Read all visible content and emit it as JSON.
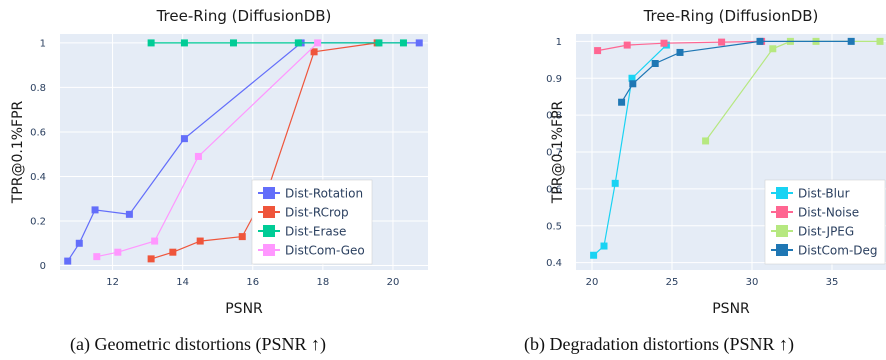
{
  "captions": {
    "a": "(a) Geometric distortions (PSNR ↑)",
    "b": "(b) Degradation distortions (PSNR ↑)"
  },
  "chart_data": [
    {
      "type": "line",
      "title": "Tree-Ring (DiffusionDB)",
      "xlabel": "PSNR",
      "ylabel": "TPR@0.1%FPR",
      "xlim": [
        10.5,
        21.0
      ],
      "ylim": [
        -0.02,
        1.04
      ],
      "xticks": [
        12,
        14,
        16,
        18,
        20
      ],
      "xtick_labels": [
        "12",
        "14",
        "16",
        "18",
        "20"
      ],
      "yticks": [
        0,
        0.2,
        0.4,
        0.6,
        0.8,
        1
      ],
      "ytick_labels": [
        "0",
        "0.2",
        "0.4",
        "0.6",
        "0.8",
        "1"
      ],
      "grid": true,
      "legend_position": "bottom-right",
      "series": [
        {
          "name": "Dist-Rotation",
          "color": "#636efa",
          "x": [
            10.72,
            11.05,
            11.5,
            12.48,
            14.05,
            17.38,
            20.75
          ],
          "y": [
            0.02,
            0.1,
            0.25,
            0.23,
            0.57,
            1.0,
            1.0
          ]
        },
        {
          "name": "Dist-RCrop",
          "color": "#ef553b",
          "x": [
            13.1,
            13.72,
            14.5,
            15.7,
            16.45,
            17.75,
            19.55
          ],
          "y": [
            0.03,
            0.06,
            0.11,
            0.13,
            0.35,
            0.96,
            1.0
          ]
        },
        {
          "name": "Dist-Erase",
          "color": "#00cc96",
          "x": [
            13.1,
            14.05,
            15.45,
            17.3,
            19.6,
            20.3
          ],
          "y": [
            1.0,
            1.0,
            1.0,
            1.0,
            1.0,
            1.0
          ]
        },
        {
          "name": "DistCom-Geo",
          "color": "#ff97ff",
          "x": [
            11.55,
            12.15,
            13.2,
            14.45,
            17.85
          ],
          "y": [
            0.04,
            0.06,
            0.11,
            0.49,
            1.0
          ]
        }
      ]
    },
    {
      "type": "line",
      "title": "Tree-Ring (DiffusionDB)",
      "xlabel": "PSNR",
      "ylabel": "TPR@0.1%FPR",
      "xlim": [
        19.0,
        39.0
      ],
      "ylim": [
        0.38,
        1.02
      ],
      "xticks": [
        20,
        25,
        30,
        35
      ],
      "xtick_labels": [
        "20",
        "25",
        "30",
        "35"
      ],
      "yticks": [
        0.4,
        0.5,
        0.6,
        0.7,
        0.8,
        0.9,
        1
      ],
      "ytick_labels": [
        "0.4",
        "0.5",
        "0.6",
        "0.7",
        "0.8",
        "0.9",
        "1"
      ],
      "grid": true,
      "legend_position": "middle-right",
      "series": [
        {
          "name": "Dist-Blur",
          "color": "#19d3f3",
          "x": [
            20.1,
            20.75,
            21.45,
            22.5,
            24.65
          ],
          "y": [
            0.42,
            0.445,
            0.615,
            0.9,
            0.99
          ]
        },
        {
          "name": "Dist-Noise",
          "color": "#ff6692",
          "x": [
            20.35,
            22.2,
            24.5,
            28.1,
            30.6
          ],
          "y": [
            0.975,
            0.99,
            0.995,
            0.998,
            1.0
          ]
        },
        {
          "name": "Dist-JPEG",
          "color": "#b6e880",
          "x": [
            27.1,
            31.3,
            32.4,
            34.0,
            38.0
          ],
          "y": [
            0.73,
            0.98,
            1.0,
            1.0,
            1.0
          ]
        },
        {
          "name": "DistCom-Deg",
          "color": "#1f77b4",
          "x": [
            21.85,
            22.55,
            23.95,
            25.5,
            30.5,
            36.2
          ],
          "y": [
            0.835,
            0.885,
            0.94,
            0.97,
            1.0,
            1.0
          ]
        }
      ]
    }
  ]
}
